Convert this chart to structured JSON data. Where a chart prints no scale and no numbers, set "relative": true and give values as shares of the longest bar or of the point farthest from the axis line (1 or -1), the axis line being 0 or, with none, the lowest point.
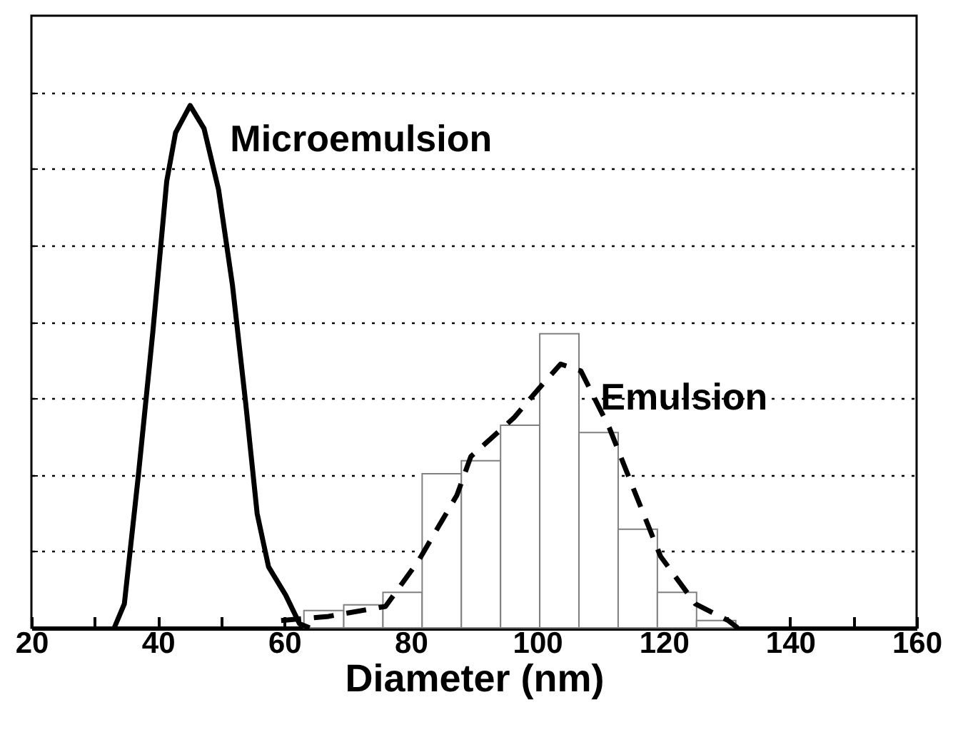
{
  "chart_data": {
    "type": "histogram",
    "xlabel": "Diameter (nm)",
    "relative": true,
    "grid": "y",
    "color": "#808080",
    "xlim": [
      20,
      160
    ],
    "xticks": [
      20,
      {
        "value": 30,
        "label": null
      },
      40,
      {
        "value": 50,
        "label": null
      },
      60,
      {
        "value": 70,
        "label": null
      },
      80,
      {
        "value": 90,
        "label": null
      },
      100,
      {
        "value": 110,
        "label": null
      },
      120,
      {
        "value": 130,
        "label": null
      },
      140,
      {
        "value": 150,
        "label": null
      },
      160
    ],
    "bins": [
      63.1,
      69.4,
      75.6,
      81.8,
      88.0,
      94.2,
      100.4,
      106.6,
      112.8,
      119.0,
      125.2,
      131.4
    ],
    "values": [
      0.033,
      0.044,
      0.068,
      0.295,
      0.32,
      0.388,
      0.563,
      0.374,
      0.189,
      0.068,
      0.014
    ],
    "series": [
      {
        "name": "Microemulsion",
        "type": "line",
        "color": "#000000",
        "line_style": "solid",
        "x": [
          33.1,
          34.7,
          36.9,
          39.2,
          41.4,
          42.8,
          45.1,
          47.3,
          49.6,
          51.8,
          53.9,
          55.7,
          57.5,
          60.2,
          62.4,
          64.0
        ],
        "values": [
          0,
          0.046,
          0.29,
          0.566,
          0.855,
          0.948,
          1.0,
          0.956,
          0.839,
          0.656,
          0.429,
          0.219,
          0.117,
          0.063,
          0.008,
          0
        ]
      },
      {
        "name": "Emulsion",
        "type": "line",
        "color": "#000000",
        "line_style": "dashed",
        "x": [
          59.5,
          67,
          76,
          81.2,
          87.3,
          89.5,
          96.3,
          100.1,
          103.7,
          106.9,
          111.4,
          115,
          119.5,
          125,
          130.2,
          131.7
        ],
        "values": [
          0.014,
          0.022,
          0.041,
          0.128,
          0.254,
          0.328,
          0.402,
          0.456,
          0.505,
          0.492,
          0.383,
          0.273,
          0.137,
          0.046,
          0.014,
          0
        ]
      }
    ]
  }
}
